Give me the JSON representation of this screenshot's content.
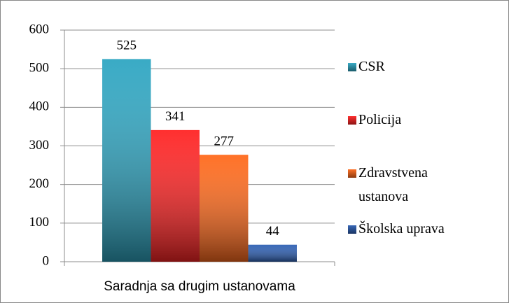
{
  "chart_data": {
    "type": "bar",
    "categories": [
      "Saradnja sa drugim ustanovama"
    ],
    "series": [
      {
        "name": "CSR",
        "color": "#2fa6c2",
        "values": [
          525
        ]
      },
      {
        "name": "Policija",
        "color": "#ff2424",
        "values": [
          341
        ]
      },
      {
        "name": "Zdravstvena ustanova",
        "color": "#ff6a1c",
        "values": [
          277
        ]
      },
      {
        "name": "Školska uprava",
        "color": "#2d5fb3",
        "values": [
          44
        ]
      }
    ],
    "ylim": [
      0,
      600
    ],
    "yticks": [
      0,
      100,
      200,
      300,
      400,
      500,
      600
    ],
    "grid": true,
    "legend": "right"
  }
}
